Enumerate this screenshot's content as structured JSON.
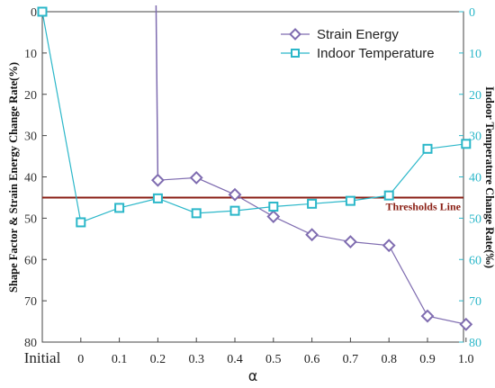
{
  "chart_data": {
    "type": "line",
    "categories": [
      "Initial",
      "0",
      "0.1",
      "0.2",
      "0.3",
      "0.4",
      "0.5",
      "0.6",
      "0.7",
      "0.8",
      "0.9",
      "1.0"
    ],
    "xlabel": "α",
    "ylabel_left": "Shape Factor & Strain Energy Change Rate(%)",
    "ylabel_right": "Indoor Temperature Change Rate(‰)",
    "ylim_left": [
      0,
      80
    ],
    "ylim_right": [
      0,
      80
    ],
    "y_axis_inverted": true,
    "yticks_left": [
      0,
      10,
      20,
      30,
      40,
      50,
      60,
      70,
      80
    ],
    "yticks_right": [
      0,
      10,
      20,
      30,
      40,
      50,
      60,
      70,
      80
    ],
    "grid": false,
    "legend_position": "top-right",
    "series": [
      {
        "name": "Strain Energy",
        "axis": "left",
        "marker": "diamond",
        "color": "#7f6cb0",
        "values": [
          null,
          null,
          null,
          40.8,
          40.2,
          44.3,
          49.6,
          54.0,
          55.7,
          56.6,
          73.7,
          75.7
        ],
        "connector_from_top_at": "0.2"
      },
      {
        "name": "Indoor Temperature",
        "axis": "right",
        "marker": "square",
        "color": "#2bb7c9",
        "values": [
          0,
          51.0,
          47.5,
          45.2,
          48.8,
          48.2,
          47.2,
          46.5,
          45.8,
          44.5,
          33.2,
          32.0
        ]
      }
    ],
    "threshold": {
      "label": "Thresholds Line",
      "value": 45,
      "color": "#8a1f14"
    }
  }
}
